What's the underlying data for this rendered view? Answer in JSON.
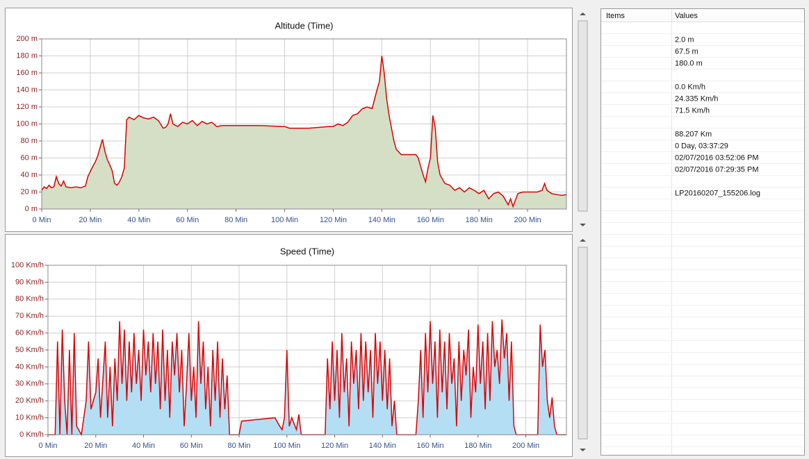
{
  "chart_data": [
    {
      "type": "area",
      "title": "Altitude (Time)",
      "color": "#dd0000",
      "fill": "#d5dfc6",
      "x": [
        0,
        1,
        2,
        3,
        4,
        5,
        6,
        7,
        8,
        9,
        10,
        12,
        14,
        16,
        18,
        19,
        20,
        21,
        22,
        23,
        24,
        25,
        26,
        27,
        28,
        29,
        30,
        31,
        32,
        33,
        34,
        35,
        36,
        38,
        40,
        42,
        44,
        46,
        48,
        50,
        51,
        52,
        53,
        54,
        56,
        58,
        60,
        62,
        64,
        66,
        68,
        70,
        72,
        74,
        76,
        78,
        80,
        90,
        100,
        102,
        110,
        118,
        120,
        122,
        124,
        126,
        128,
        130,
        132,
        134,
        136,
        138,
        139,
        140,
        141,
        142,
        143,
        144,
        145,
        146,
        148,
        150,
        152,
        154,
        155,
        156,
        157,
        158,
        159,
        160,
        161,
        162,
        163,
        164,
        166,
        168,
        170,
        172,
        174,
        176,
        178,
        180,
        182,
        184,
        186,
        188,
        190,
        191,
        192,
        193,
        194,
        196,
        198,
        200,
        202,
        204,
        206,
        207,
        208,
        209,
        210,
        212,
        214,
        216
      ],
      "values": [
        22,
        26,
        24,
        28,
        25,
        26,
        38,
        30,
        27,
        33,
        26,
        25,
        26,
        25,
        27,
        38,
        44,
        50,
        55,
        62,
        72,
        82,
        68,
        58,
        52,
        45,
        30,
        28,
        32,
        38,
        48,
        105,
        108,
        105,
        110,
        107,
        106,
        108,
        104,
        95,
        96,
        100,
        112,
        100,
        97,
        102,
        100,
        104,
        98,
        103,
        100,
        102,
        97,
        98,
        98,
        98,
        98,
        98,
        97,
        95,
        95,
        97,
        97,
        100,
        98,
        102,
        110,
        112,
        118,
        120,
        118,
        140,
        150,
        180,
        160,
        130,
        110,
        95,
        80,
        70,
        64,
        64,
        64,
        64,
        60,
        50,
        40,
        32,
        48,
        60,
        110,
        95,
        55,
        40,
        30,
        28,
        22,
        25,
        20,
        25,
        22,
        18,
        22,
        12,
        18,
        20,
        15,
        10,
        5,
        12,
        3,
        18,
        20,
        20,
        20,
        20,
        22,
        30,
        22,
        20,
        18,
        17,
        16,
        17
      ],
      "xlim": [
        0,
        216
      ],
      "xticks": [
        {
          "value": 0,
          "label": "0 Min"
        },
        {
          "value": 20,
          "label": "20 Min"
        },
        {
          "value": 40,
          "label": "40 Min"
        },
        {
          "value": 60,
          "label": "60 Min"
        },
        {
          "value": 80,
          "label": "80 Min"
        },
        {
          "value": 100,
          "label": "100 Min"
        },
        {
          "value": 120,
          "label": "120 Min"
        },
        {
          "value": 140,
          "label": "140 Min"
        },
        {
          "value": 160,
          "label": "160 Min"
        },
        {
          "value": 180,
          "label": "180 Min"
        },
        {
          "value": 200,
          "label": "200 Min"
        }
      ],
      "ylim": [
        0,
        200
      ],
      "yticks": [
        {
          "value": 0,
          "label": "0 m"
        },
        {
          "value": 20,
          "label": "20 m"
        },
        {
          "value": 40,
          "label": "40 m"
        },
        {
          "value": 60,
          "label": "60 m"
        },
        {
          "value": 80,
          "label": "80 m"
        },
        {
          "value": 100,
          "label": "100 m"
        },
        {
          "value": 120,
          "label": "120 m"
        },
        {
          "value": 140,
          "label": "140 m"
        },
        {
          "value": 160,
          "label": "160 m"
        },
        {
          "value": 180,
          "label": "180 m"
        },
        {
          "value": 200,
          "label": "200 m"
        }
      ],
      "grid": true
    },
    {
      "type": "area",
      "title": "Speed (Time)",
      "color": "#dd0000",
      "fill": "#b3def3",
      "x": [
        0,
        3,
        4,
        5,
        6,
        7,
        8,
        9,
        10,
        11,
        12,
        14,
        16,
        17,
        18,
        20,
        21,
        22,
        24,
        25,
        26,
        27,
        28,
        29,
        30,
        31,
        32,
        33,
        34,
        35,
        36,
        37,
        38,
        39,
        40,
        41,
        42,
        43,
        44,
        45,
        46,
        47,
        48,
        49,
        50,
        51,
        52,
        53,
        54,
        55,
        56,
        57,
        58,
        59,
        60,
        61,
        62,
        63,
        64,
        65,
        66,
        67,
        68,
        69,
        70,
        71,
        72,
        73,
        74,
        75,
        76,
        80,
        81,
        88,
        95,
        97,
        98,
        99,
        100,
        101,
        102,
        104,
        105,
        106,
        116,
        117,
        118,
        119,
        120,
        121,
        122,
        123,
        124,
        125,
        126,
        127,
        128,
        129,
        130,
        131,
        132,
        133,
        134,
        135,
        136,
        137,
        138,
        139,
        140,
        141,
        142,
        143,
        144,
        145,
        146,
        154,
        155,
        156,
        157,
        158,
        159,
        160,
        161,
        162,
        163,
        164,
        165,
        166,
        167,
        168,
        169,
        170,
        171,
        172,
        173,
        174,
        175,
        176,
        177,
        178,
        179,
        180,
        181,
        182,
        183,
        184,
        185,
        186,
        187,
        188,
        189,
        190,
        191,
        192,
        193,
        194,
        195,
        196,
        205,
        206,
        207,
        208,
        209,
        210,
        211,
        212,
        213,
        217
      ],
      "values": [
        0,
        0,
        55,
        0,
        62,
        20,
        0,
        50,
        0,
        60,
        5,
        0,
        20,
        55,
        15,
        25,
        45,
        10,
        55,
        10,
        40,
        5,
        45,
        20,
        67,
        30,
        62,
        20,
        55,
        25,
        60,
        30,
        50,
        20,
        62,
        35,
        55,
        25,
        60,
        30,
        55,
        15,
        62,
        20,
        50,
        10,
        55,
        35,
        60,
        25,
        50,
        5,
        30,
        60,
        20,
        40,
        10,
        67,
        30,
        55,
        15,
        40,
        5,
        50,
        20,
        55,
        10,
        45,
        15,
        35,
        0,
        0,
        8,
        9,
        10,
        5,
        3,
        10,
        50,
        5,
        10,
        3,
        12,
        0,
        0,
        45,
        15,
        55,
        20,
        50,
        10,
        60,
        25,
        45,
        5,
        55,
        30,
        50,
        15,
        60,
        20,
        55,
        25,
        50,
        10,
        60,
        30,
        55,
        20,
        50,
        15,
        45,
        5,
        20,
        0,
        0,
        20,
        50,
        10,
        60,
        25,
        67,
        30,
        55,
        10,
        62,
        25,
        55,
        15,
        60,
        30,
        45,
        5,
        55,
        20,
        50,
        35,
        62,
        10,
        40,
        25,
        65,
        30,
        55,
        15,
        60,
        20,
        67,
        40,
        50,
        30,
        68,
        45,
        60,
        20,
        55,
        5,
        0,
        0,
        65,
        40,
        50,
        20,
        10,
        22,
        5,
        0,
        0
      ],
      "xlim": [
        0,
        217
      ],
      "xticks": [
        {
          "value": 0,
          "label": "0 Min"
        },
        {
          "value": 20,
          "label": "20 Min"
        },
        {
          "value": 40,
          "label": "40 Min"
        },
        {
          "value": 60,
          "label": "60 Min"
        },
        {
          "value": 80,
          "label": "80 Min"
        },
        {
          "value": 100,
          "label": "100 Min"
        },
        {
          "value": 120,
          "label": "120 Min"
        },
        {
          "value": 140,
          "label": "140 Min"
        },
        {
          "value": 160,
          "label": "160 Min"
        },
        {
          "value": 180,
          "label": "180 Min"
        },
        {
          "value": 200,
          "label": "200 Min"
        }
      ],
      "ylim": [
        0,
        100
      ],
      "yticks": [
        {
          "value": 0,
          "label": "0 Km/h"
        },
        {
          "value": 10,
          "label": "10 Km/h"
        },
        {
          "value": 20,
          "label": "20 Km/h"
        },
        {
          "value": 30,
          "label": "30 Km/h"
        },
        {
          "value": 40,
          "label": "40 Km/h"
        },
        {
          "value": 50,
          "label": "50 Km/h"
        },
        {
          "value": 60,
          "label": "60 Km/h"
        },
        {
          "value": 70,
          "label": "70 Km/h"
        },
        {
          "value": 80,
          "label": "80 Km/h"
        },
        {
          "value": 90,
          "label": "90 Km/h"
        },
        {
          "value": 100,
          "label": "100 Km/h"
        }
      ],
      "grid": true
    }
  ],
  "table": {
    "headers": [
      "Items",
      "Values"
    ],
    "groups": [
      [
        "2.0 m",
        "67.5 m",
        "180.0 m"
      ],
      [
        "0.0 Km/h",
        "24.335 Km/h",
        "71.5 Km/h"
      ],
      [
        "88.207 Km",
        "0 Day, 03:37:29",
        "02/07/2016 03:52:06 PM",
        "02/07/2016 07:29:35 PM"
      ],
      [
        "LP20160207_155206.log"
      ]
    ]
  }
}
